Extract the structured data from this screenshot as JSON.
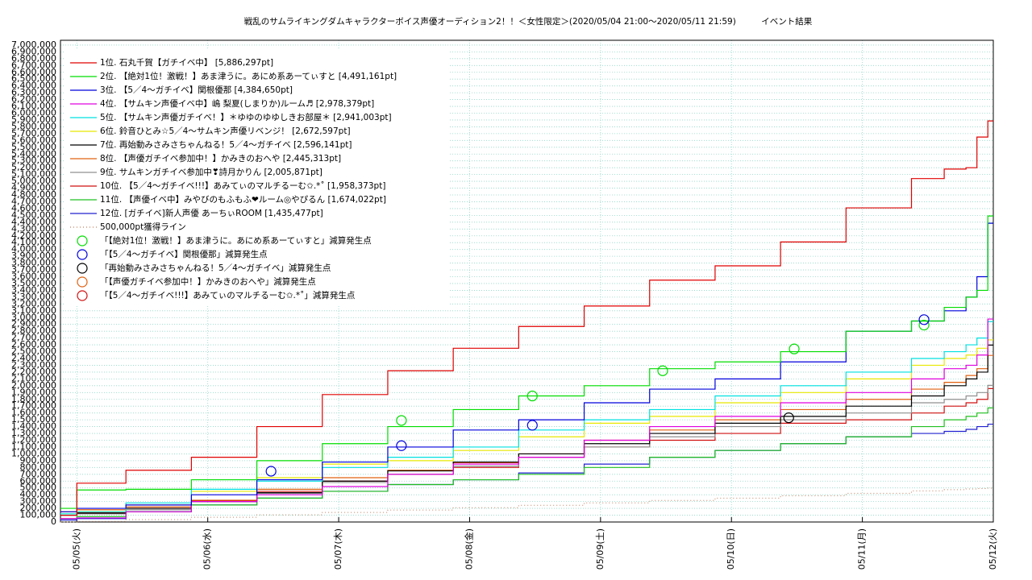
{
  "chart_data": {
    "type": "line",
    "step": true,
    "title": "戦乱のサムライキングダムキャラクターボイス声優オーディション2！！＜女性限定＞(2020/05/04 21:00〜2020/05/11 21:59)　　　イベント結果",
    "x": [
      0,
      3,
      12,
      24,
      36,
      48,
      60,
      72,
      84,
      96,
      108,
      120,
      132,
      144,
      156,
      162,
      166,
      168,
      170,
      171
    ],
    "xlim": [
      0,
      171
    ],
    "xticks": [
      {
        "value": 3,
        "label": "05/05(火)"
      },
      {
        "value": 27,
        "label": "05/06(水)"
      },
      {
        "value": 51,
        "label": "05/07(木)"
      },
      {
        "value": 75,
        "label": "05/08(金)"
      },
      {
        "value": 99,
        "label": "05/09(土)"
      },
      {
        "value": 123,
        "label": "05/10(日)"
      },
      {
        "value": 147,
        "label": "05/11(月)"
      },
      {
        "value": 171,
        "label": "05/12(火)"
      }
    ],
    "ylim": [
      0,
      7070000
    ],
    "yticks": [
      0,
      {
        "value": 100000,
        "label": "100,000"
      },
      {
        "value": 200000,
        "label": "200,000"
      },
      {
        "value": 300000,
        "label": "300,000"
      },
      {
        "value": 400000,
        "label": "400,000"
      },
      {
        "value": 500000,
        "label": "500,000"
      },
      {
        "value": 600000,
        "label": "600,000"
      },
      {
        "value": 700000,
        "label": "700,000"
      },
      {
        "value": 800000,
        "label": "800,000"
      },
      {
        "value": 900000,
        "label": "900,000"
      },
      {
        "value": 1000000,
        "label": "1,000,000"
      },
      {
        "value": 1100000,
        "label": "1,100,000"
      },
      {
        "value": 1200000,
        "label": "1,200,000"
      },
      {
        "value": 1300000,
        "label": "1,300,000"
      },
      {
        "value": 1400000,
        "label": "1,400,000"
      },
      {
        "value": 1500000,
        "label": "1,500,000"
      },
      {
        "value": 1600000,
        "label": "1,600,000"
      },
      {
        "value": 1700000,
        "label": "1,700,000"
      },
      {
        "value": 1800000,
        "label": "1,800,000"
      },
      {
        "value": 1900000,
        "label": "1,900,000"
      },
      {
        "value": 2000000,
        "label": "2,000,000"
      },
      {
        "value": 2100000,
        "label": "2,100,000"
      },
      {
        "value": 2200000,
        "label": "2,200,000"
      },
      {
        "value": 2300000,
        "label": "2,300,000"
      },
      {
        "value": 2400000,
        "label": "2,400,000"
      },
      {
        "value": 2500000,
        "label": "2,500,000"
      },
      {
        "value": 2600000,
        "label": "2,600,000"
      },
      {
        "value": 2700000,
        "label": "2,700,000"
      },
      {
        "value": 2800000,
        "label": "2,800,000"
      },
      {
        "value": 2900000,
        "label": "2,900,000"
      },
      {
        "value": 3000000,
        "label": "3,000,000"
      },
      {
        "value": 3100000,
        "label": "3,100,000"
      },
      {
        "value": 3200000,
        "label": "3,200,000"
      },
      {
        "value": 3300000,
        "label": "3,300,000"
      },
      {
        "value": 3400000,
        "label": "3,400,000"
      },
      {
        "value": 3500000,
        "label": "3,500,000"
      },
      {
        "value": 3600000,
        "label": "3,600,000"
      },
      {
        "value": 3700000,
        "label": "3,700,000"
      },
      {
        "value": 3800000,
        "label": "3,800,000"
      },
      {
        "value": 3900000,
        "label": "3,900,000"
      },
      {
        "value": 4000000,
        "label": "4,000,000"
      },
      {
        "value": 4100000,
        "label": "4,100,000"
      },
      {
        "value": 4200000,
        "label": "4,200,000"
      },
      {
        "value": 4300000,
        "label": "4,300,000"
      },
      {
        "value": 4400000,
        "label": "4,400,000"
      },
      {
        "value": 4500000,
        "label": "4,500,000"
      },
      {
        "value": 4600000,
        "label": "4,600,000"
      },
      {
        "value": 4700000,
        "label": "4,700,000"
      },
      {
        "value": 4800000,
        "label": "4,800,000"
      },
      {
        "value": 4900000,
        "label": "4,900,000"
      },
      {
        "value": 5000000,
        "label": "5,000,000"
      },
      {
        "value": 5100000,
        "label": "5,100,000"
      },
      {
        "value": 5200000,
        "label": "5,200,000"
      },
      {
        "value": 5300000,
        "label": "5,300,000"
      },
      {
        "value": 5400000,
        "label": "5,400,000"
      },
      {
        "value": 5500000,
        "label": "5,500,000"
      },
      {
        "value": 5600000,
        "label": "5,600,000"
      },
      {
        "value": 5700000,
        "label": "5,700,000"
      },
      {
        "value": 5800000,
        "label": "5,800,000"
      },
      {
        "value": 5900000,
        "label": "5,900,000"
      },
      {
        "value": 6000000,
        "label": "6,000,000"
      },
      {
        "value": 6100000,
        "label": "6,100,000"
      },
      {
        "value": 6200000,
        "label": "6,200,000"
      },
      {
        "value": 6300000,
        "label": "6,300,000"
      },
      {
        "value": 6400000,
        "label": "6,400,000"
      },
      {
        "value": 6500000,
        "label": "6,500,000"
      },
      {
        "value": 6600000,
        "label": "6,600,000"
      },
      {
        "value": 6700000,
        "label": "6,700,000"
      },
      {
        "value": 6800000,
        "label": "6,800,000"
      },
      {
        "value": 6900000,
        "label": "6,900,000"
      },
      {
        "value": 7000000,
        "label": "7,000,000"
      }
    ],
    "grid": true,
    "series": [
      {
        "name": "1位. 石丸千賀【ガチイベ中】 [5,886,297pt]",
        "color": "#e00000",
        "values": [
          100000,
          570000,
          760000,
          950000,
          1400000,
          1870000,
          2220000,
          2550000,
          2870000,
          3170000,
          3550000,
          3760000,
          4110000,
          4610000,
          5040000,
          5180000,
          5200000,
          5650000,
          5886297,
          5886297
        ]
      },
      {
        "name": "2位. 【絶対1位！激戦！】あま津うに。あにめ系あーてぃすと [4,491,161pt]",
        "color": "#00dd00",
        "values": [
          200000,
          470000,
          480000,
          620000,
          900000,
          1150000,
          1400000,
          1650000,
          1850000,
          2000000,
          2250000,
          2350000,
          2500000,
          2800000,
          2950000,
          3150000,
          3300000,
          3400000,
          4491161,
          4491161
        ]
      },
      {
        "name": "3位. 【5／4〜ガチイベ】関根優那 [4,384,650pt]",
        "color": "#0000dd",
        "values": [
          150000,
          200000,
          250000,
          400000,
          620000,
          880000,
          1100000,
          1350000,
          1500000,
          1750000,
          1950000,
          2100000,
          2350000,
          2800000,
          2950000,
          3100000,
          3300000,
          3600000,
          4384650,
          4384650
        ]
      },
      {
        "name": "4位. 【サムキン声優イベ中】嶋 梨夏(しまりか)ルーム♬ [2,978,379pt]",
        "color": "#e000e0",
        "values": [
          50000,
          60000,
          150000,
          300000,
          400000,
          520000,
          700000,
          850000,
          950000,
          1200000,
          1400000,
          1550000,
          1750000,
          1900000,
          2100000,
          2250000,
          2300000,
          2450000,
          2978379,
          2978379
        ]
      },
      {
        "name": "5位. 【サムキン声優ガチイベ！】＊ゆゆのゆゆしきお部屋＊ [2,941,003pt]",
        "color": "#00e0e0",
        "values": [
          120000,
          150000,
          280000,
          480000,
          600000,
          800000,
          950000,
          1100000,
          1350000,
          1500000,
          1650000,
          1850000,
          2000000,
          2200000,
          2400000,
          2500000,
          2600000,
          2700000,
          2941003,
          2941003
        ]
      },
      {
        "name": "6位. 鈴音ひとみ☆5／4〜サムキン声優リベンジ！ [2,672,597pt]",
        "color": "#e8e800",
        "values": [
          120000,
          150000,
          250000,
          450000,
          650000,
          850000,
          900000,
          1050000,
          1250000,
          1450000,
          1550000,
          1750000,
          1900000,
          2100000,
          2300000,
          2400000,
          2450000,
          2550000,
          2672597,
          2672597
        ]
      },
      {
        "name": "7位. 再始動みさみさちゃんねる！5／4〜ガチイベ [2,596,141pt]",
        "color": "#000000",
        "values": [
          100000,
          130000,
          200000,
          300000,
          430000,
          600000,
          750000,
          880000,
          1000000,
          1150000,
          1300000,
          1450000,
          1550000,
          1700000,
          1850000,
          2000000,
          2100000,
          2200000,
          2596141,
          2596141
        ]
      },
      {
        "name": "8位. 【声優ガチイベ参加中！】かみきのおへや [2,445,313pt]",
        "color": "#e06010",
        "values": [
          150000,
          180000,
          220000,
          320000,
          480000,
          650000,
          760000,
          870000,
          1000000,
          1200000,
          1350000,
          1500000,
          1650000,
          1800000,
          1950000,
          2050000,
          2150000,
          2250000,
          2445313,
          2445313
        ]
      },
      {
        "name": "9位. サムキンガチイベ参加中❣詩月かりん [2,005,871pt]",
        "color": "#909090",
        "values": [
          100000,
          120000,
          180000,
          300000,
          420000,
          580000,
          700000,
          820000,
          950000,
          1100000,
          1250000,
          1400000,
          1500000,
          1600000,
          1750000,
          1800000,
          1850000,
          1900000,
          2005871,
          2005871
        ]
      },
      {
        "name": "10位. 【5／4〜ガチイベ!!!】あみてぃのマルチるーむ✩.*˚ [1,958,373pt]",
        "color": "#d01010",
        "values": [
          100000,
          140000,
          200000,
          310000,
          450000,
          600000,
          700000,
          800000,
          950000,
          1100000,
          1200000,
          1300000,
          1450000,
          1500000,
          1600000,
          1700000,
          1750000,
          1800000,
          1958373,
          1958373
        ]
      },
      {
        "name": "11位. 【声優イベ中】みやびのもふもふ❤ルーム◎やぴるん [1,674,022pt]",
        "color": "#20c020",
        "values": [
          50000,
          80000,
          150000,
          250000,
          350000,
          450000,
          550000,
          620000,
          700000,
          800000,
          950000,
          1050000,
          1150000,
          1250000,
          1400000,
          1500000,
          1550000,
          1600000,
          1674022,
          1674022
        ]
      },
      {
        "name": "12位. [ガチイベ]新人声優 あーちぃROOM [1,435,477pt]",
        "color": "#2020d0",
        "values": [
          30000,
          50000,
          150000,
          250000,
          350000,
          450000,
          550000,
          620000,
          720000,
          850000,
          950000,
          1050000,
          1150000,
          1250000,
          1300000,
          1330000,
          1360000,
          1400000,
          1435477,
          1435477
        ]
      },
      {
        "name": "500,000pt獲得ライン",
        "color": "#c08060",
        "style": "dotted",
        "values": [
          0,
          8772,
          35088,
          70175,
          105263,
          140351,
          175439,
          210526,
          245614,
          280702,
          315789,
          350877,
          385965,
          421053,
          456140,
          473684,
          485380,
          491228,
          497076,
          500000
        ]
      }
    ],
    "markers": [
      {
        "name": "「【絶対1位！激戦！】あま津うに。あにめ系あーてぃすと」減算発生点",
        "color": "#00dd00",
        "x": [
          62.5,
          86.5,
          110.4,
          134.5,
          158.3
        ],
        "y": [
          1490000,
          1850000,
          2220000,
          2540000,
          2890000
        ]
      },
      {
        "name": "「【5／4〜ガチイベ】関根優那」減算発生点",
        "color": "#0000dd",
        "x": [
          38.6,
          62.5,
          86.5,
          158.3
        ],
        "y": [
          745000,
          1120000,
          1420000,
          2970000
        ]
      },
      {
        "name": "「再始動みさみさちゃんねる！5／4〜ガチイベ」減算発生点",
        "color": "#000000",
        "x": [
          133.5
        ],
        "y": [
          1530000
        ]
      },
      {
        "name": "「【声優ガチイベ参加中！】かみきのおへや」減算発生点",
        "color": "#e06010",
        "x": [],
        "y": []
      },
      {
        "name": "「【5／4〜ガチイベ!!!】あみてぃのマルチるーむ✩.*˚」減算発生点",
        "color": "#d01010",
        "x": [],
        "y": []
      }
    ]
  }
}
